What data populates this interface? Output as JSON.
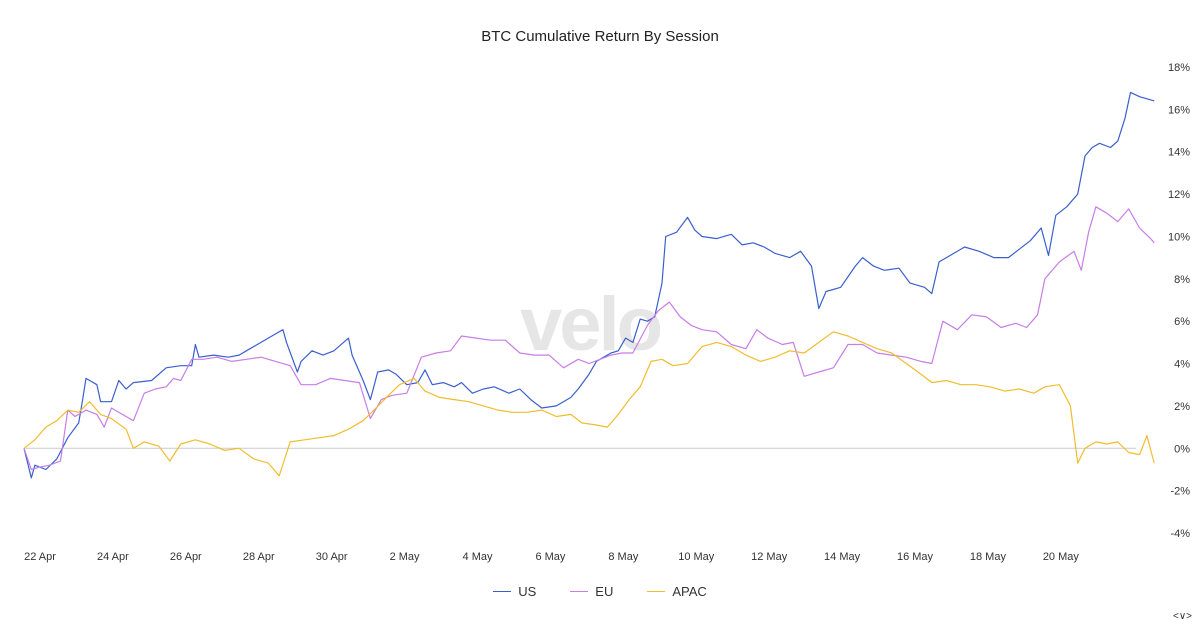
{
  "chart_data": {
    "type": "line",
    "title": "BTC Cumulative Return By Session",
    "xlabel": "",
    "ylabel": "",
    "x_ticks": [
      "22 Apr",
      "24 Apr",
      "26 Apr",
      "28 Apr",
      "30 Apr",
      "2 May",
      "4 May",
      "6 May",
      "8 May",
      "10 May",
      "12 May",
      "14 May",
      "16 May",
      "18 May",
      "20 May"
    ],
    "y_ticks": [
      "18%",
      "16%",
      "14%",
      "12%",
      "10%",
      "8%",
      "6%",
      "4%",
      "2%",
      "0%",
      "-2%",
      "-4%"
    ],
    "ylim": [
      -4,
      18
    ],
    "xlim": [
      0,
      30.5
    ],
    "y_axis_side": "right",
    "zero_line": true,
    "legend_position": "bottom-center",
    "watermark": "velo",
    "series": [
      {
        "name": "US",
        "color": "#3a5fcd",
        "points": [
          [
            0.0,
            0.0
          ],
          [
            0.2,
            -1.4
          ],
          [
            0.3,
            -0.8
          ],
          [
            0.6,
            -1.0
          ],
          [
            0.9,
            -0.5
          ],
          [
            1.2,
            0.5
          ],
          [
            1.5,
            1.2
          ],
          [
            1.6,
            2.2
          ],
          [
            1.7,
            3.3
          ],
          [
            2.0,
            3.0
          ],
          [
            2.1,
            2.2
          ],
          [
            2.4,
            2.2
          ],
          [
            2.6,
            3.2
          ],
          [
            2.8,
            2.8
          ],
          [
            3.0,
            3.1
          ],
          [
            3.5,
            3.2
          ],
          [
            3.9,
            3.8
          ],
          [
            4.3,
            3.9
          ],
          [
            4.6,
            3.9
          ],
          [
            4.7,
            4.9
          ],
          [
            4.8,
            4.3
          ],
          [
            5.2,
            4.4
          ],
          [
            5.6,
            4.3
          ],
          [
            5.9,
            4.4
          ],
          [
            6.1,
            4.6
          ],
          [
            6.5,
            5.0
          ],
          [
            6.9,
            5.4
          ],
          [
            7.1,
            5.6
          ],
          [
            7.2,
            5.0
          ],
          [
            7.5,
            3.6
          ],
          [
            7.6,
            4.1
          ],
          [
            7.9,
            4.6
          ],
          [
            8.2,
            4.4
          ],
          [
            8.5,
            4.6
          ],
          [
            8.9,
            5.2
          ],
          [
            9.0,
            4.4
          ],
          [
            9.3,
            3.2
          ],
          [
            9.5,
            2.3
          ],
          [
            9.7,
            3.6
          ],
          [
            10.0,
            3.7
          ],
          [
            10.2,
            3.5
          ],
          [
            10.5,
            3.0
          ],
          [
            10.8,
            3.1
          ],
          [
            11.0,
            3.7
          ],
          [
            11.2,
            3.0
          ],
          [
            11.5,
            3.1
          ],
          [
            11.8,
            2.9
          ],
          [
            12.0,
            3.1
          ],
          [
            12.3,
            2.6
          ],
          [
            12.6,
            2.8
          ],
          [
            12.9,
            2.9
          ],
          [
            13.3,
            2.6
          ],
          [
            13.6,
            2.8
          ],
          [
            13.9,
            2.3
          ],
          [
            14.2,
            1.9
          ],
          [
            14.6,
            2.0
          ],
          [
            15.0,
            2.4
          ],
          [
            15.2,
            2.8
          ],
          [
            15.5,
            3.5
          ],
          [
            15.7,
            4.1
          ],
          [
            15.9,
            4.3
          ],
          [
            16.1,
            4.5
          ],
          [
            16.3,
            4.6
          ],
          [
            16.5,
            5.2
          ],
          [
            16.7,
            5.0
          ],
          [
            16.9,
            6.1
          ],
          [
            17.1,
            6.0
          ],
          [
            17.3,
            6.2
          ],
          [
            17.5,
            7.8
          ],
          [
            17.6,
            10.0
          ],
          [
            17.9,
            10.2
          ],
          [
            18.2,
            10.9
          ],
          [
            18.4,
            10.3
          ],
          [
            18.6,
            10.0
          ],
          [
            19.0,
            9.9
          ],
          [
            19.4,
            10.1
          ],
          [
            19.7,
            9.6
          ],
          [
            20.0,
            9.7
          ],
          [
            20.3,
            9.5
          ],
          [
            20.6,
            9.2
          ],
          [
            21.0,
            9.0
          ],
          [
            21.3,
            9.3
          ],
          [
            21.6,
            8.6
          ],
          [
            21.8,
            6.6
          ],
          [
            22.0,
            7.4
          ],
          [
            22.4,
            7.6
          ],
          [
            22.8,
            8.6
          ],
          [
            23.0,
            9.0
          ],
          [
            23.3,
            8.6
          ],
          [
            23.6,
            8.4
          ],
          [
            24.0,
            8.5
          ],
          [
            24.3,
            7.8
          ],
          [
            24.7,
            7.6
          ],
          [
            24.9,
            7.3
          ],
          [
            25.1,
            8.8
          ],
          [
            25.4,
            9.1
          ],
          [
            25.8,
            9.5
          ],
          [
            26.2,
            9.3
          ],
          [
            26.6,
            9.0
          ],
          [
            27.0,
            9.0
          ],
          [
            27.3,
            9.4
          ],
          [
            27.6,
            9.8
          ],
          [
            27.9,
            10.4
          ],
          [
            28.1,
            9.1
          ],
          [
            28.3,
            11.0
          ],
          [
            28.6,
            11.4
          ],
          [
            28.9,
            12.0
          ],
          [
            29.1,
            13.8
          ],
          [
            29.3,
            14.2
          ],
          [
            29.5,
            14.4
          ],
          [
            29.8,
            14.2
          ],
          [
            30.0,
            14.5
          ],
          [
            30.2,
            15.6
          ],
          [
            30.35,
            16.8
          ],
          [
            30.6,
            16.6
          ],
          [
            31.0,
            16.4
          ]
        ]
      },
      {
        "name": "EU",
        "color": "#c77ee6",
        "points": [
          [
            0.0,
            0.0
          ],
          [
            0.2,
            -1.0
          ],
          [
            0.4,
            -0.9
          ],
          [
            0.7,
            -0.8
          ],
          [
            1.0,
            -0.6
          ],
          [
            1.2,
            1.8
          ],
          [
            1.4,
            1.5
          ],
          [
            1.7,
            1.8
          ],
          [
            2.0,
            1.6
          ],
          [
            2.2,
            1.0
          ],
          [
            2.4,
            1.9
          ],
          [
            2.7,
            1.6
          ],
          [
            3.0,
            1.3
          ],
          [
            3.3,
            2.6
          ],
          [
            3.6,
            2.8
          ],
          [
            3.9,
            2.9
          ],
          [
            4.1,
            3.3
          ],
          [
            4.3,
            3.2
          ],
          [
            4.6,
            4.2
          ],
          [
            4.9,
            4.2
          ],
          [
            5.3,
            4.3
          ],
          [
            5.7,
            4.1
          ],
          [
            6.1,
            4.2
          ],
          [
            6.5,
            4.3
          ],
          [
            6.9,
            4.1
          ],
          [
            7.3,
            3.9
          ],
          [
            7.6,
            3.0
          ],
          [
            8.0,
            3.0
          ],
          [
            8.4,
            3.3
          ],
          [
            8.8,
            3.2
          ],
          [
            9.2,
            3.1
          ],
          [
            9.5,
            1.4
          ],
          [
            9.8,
            2.3
          ],
          [
            10.1,
            2.5
          ],
          [
            10.5,
            2.6
          ],
          [
            10.9,
            4.3
          ],
          [
            11.3,
            4.5
          ],
          [
            11.7,
            4.6
          ],
          [
            12.0,
            5.3
          ],
          [
            12.4,
            5.2
          ],
          [
            12.8,
            5.1
          ],
          [
            13.2,
            5.1
          ],
          [
            13.6,
            4.5
          ],
          [
            14.0,
            4.4
          ],
          [
            14.4,
            4.4
          ],
          [
            14.8,
            3.8
          ],
          [
            15.2,
            4.2
          ],
          [
            15.5,
            4.0
          ],
          [
            15.8,
            4.2
          ],
          [
            16.1,
            4.4
          ],
          [
            16.4,
            4.5
          ],
          [
            16.7,
            4.5
          ],
          [
            17.1,
            5.8
          ],
          [
            17.4,
            6.5
          ],
          [
            17.7,
            6.9
          ],
          [
            18.0,
            6.2
          ],
          [
            18.3,
            5.8
          ],
          [
            18.6,
            5.6
          ],
          [
            19.0,
            5.5
          ],
          [
            19.4,
            4.9
          ],
          [
            19.8,
            4.7
          ],
          [
            20.1,
            5.6
          ],
          [
            20.4,
            5.2
          ],
          [
            20.8,
            4.9
          ],
          [
            21.1,
            5.0
          ],
          [
            21.4,
            3.4
          ],
          [
            21.8,
            3.6
          ],
          [
            22.2,
            3.8
          ],
          [
            22.6,
            4.9
          ],
          [
            23.0,
            4.9
          ],
          [
            23.4,
            4.5
          ],
          [
            23.8,
            4.4
          ],
          [
            24.2,
            4.3
          ],
          [
            24.6,
            4.1
          ],
          [
            24.9,
            4.0
          ],
          [
            25.2,
            6.0
          ],
          [
            25.6,
            5.6
          ],
          [
            26.0,
            6.3
          ],
          [
            26.4,
            6.2
          ],
          [
            26.8,
            5.7
          ],
          [
            27.2,
            5.9
          ],
          [
            27.5,
            5.7
          ],
          [
            27.8,
            6.3
          ],
          [
            28.0,
            8.0
          ],
          [
            28.4,
            8.8
          ],
          [
            28.8,
            9.3
          ],
          [
            29.0,
            8.4
          ],
          [
            29.2,
            10.2
          ],
          [
            29.4,
            11.4
          ],
          [
            29.7,
            11.1
          ],
          [
            30.0,
            10.7
          ],
          [
            30.3,
            11.3
          ],
          [
            30.6,
            10.4
          ],
          [
            30.9,
            9.9
          ],
          [
            31.0,
            9.7
          ]
        ]
      },
      {
        "name": "APAC",
        "color": "#f0bd2e",
        "points": [
          [
            0.0,
            0.0
          ],
          [
            0.3,
            0.4
          ],
          [
            0.6,
            1.0
          ],
          [
            0.9,
            1.3
          ],
          [
            1.2,
            1.8
          ],
          [
            1.5,
            1.7
          ],
          [
            1.8,
            2.2
          ],
          [
            2.1,
            1.6
          ],
          [
            2.4,
            1.4
          ],
          [
            2.8,
            0.9
          ],
          [
            3.0,
            0.0
          ],
          [
            3.3,
            0.3
          ],
          [
            3.7,
            0.1
          ],
          [
            4.0,
            -0.6
          ],
          [
            4.3,
            0.2
          ],
          [
            4.7,
            0.4
          ],
          [
            5.1,
            0.2
          ],
          [
            5.5,
            -0.1
          ],
          [
            5.9,
            0.0
          ],
          [
            6.3,
            -0.5
          ],
          [
            6.7,
            -0.7
          ],
          [
            7.0,
            -1.3
          ],
          [
            7.3,
            0.3
          ],
          [
            7.7,
            0.4
          ],
          [
            8.1,
            0.5
          ],
          [
            8.5,
            0.6
          ],
          [
            8.9,
            0.9
          ],
          [
            9.3,
            1.3
          ],
          [
            9.6,
            1.8
          ],
          [
            10.0,
            2.5
          ],
          [
            10.3,
            3.0
          ],
          [
            10.7,
            3.3
          ],
          [
            11.0,
            2.7
          ],
          [
            11.4,
            2.4
          ],
          [
            11.8,
            2.3
          ],
          [
            12.2,
            2.2
          ],
          [
            12.6,
            2.0
          ],
          [
            13.0,
            1.8
          ],
          [
            13.4,
            1.7
          ],
          [
            13.8,
            1.7
          ],
          [
            14.2,
            1.8
          ],
          [
            14.6,
            1.5
          ],
          [
            15.0,
            1.6
          ],
          [
            15.3,
            1.2
          ],
          [
            15.7,
            1.1
          ],
          [
            16.0,
            1.0
          ],
          [
            16.3,
            1.6
          ],
          [
            16.6,
            2.3
          ],
          [
            16.9,
            2.9
          ],
          [
            17.2,
            4.1
          ],
          [
            17.5,
            4.2
          ],
          [
            17.8,
            3.9
          ],
          [
            18.2,
            4.0
          ],
          [
            18.6,
            4.8
          ],
          [
            19.0,
            5.0
          ],
          [
            19.4,
            4.8
          ],
          [
            19.8,
            4.4
          ],
          [
            20.2,
            4.1
          ],
          [
            20.6,
            4.3
          ],
          [
            21.0,
            4.6
          ],
          [
            21.4,
            4.5
          ],
          [
            21.8,
            5.0
          ],
          [
            22.2,
            5.5
          ],
          [
            22.6,
            5.3
          ],
          [
            23.0,
            5.0
          ],
          [
            23.4,
            4.7
          ],
          [
            23.8,
            4.5
          ],
          [
            24.2,
            4.0
          ],
          [
            24.6,
            3.5
          ],
          [
            24.9,
            3.1
          ],
          [
            25.3,
            3.2
          ],
          [
            25.7,
            3.0
          ],
          [
            26.1,
            3.0
          ],
          [
            26.5,
            2.9
          ],
          [
            26.9,
            2.7
          ],
          [
            27.3,
            2.8
          ],
          [
            27.7,
            2.6
          ],
          [
            28.0,
            2.9
          ],
          [
            28.4,
            3.0
          ],
          [
            28.7,
            2.0
          ],
          [
            28.9,
            -0.7
          ],
          [
            29.1,
            0.0
          ],
          [
            29.4,
            0.3
          ],
          [
            29.7,
            0.2
          ],
          [
            30.0,
            0.3
          ],
          [
            30.3,
            -0.2
          ],
          [
            30.6,
            -0.3
          ],
          [
            30.8,
            0.6
          ],
          [
            31.0,
            -0.7
          ]
        ]
      }
    ]
  }
}
